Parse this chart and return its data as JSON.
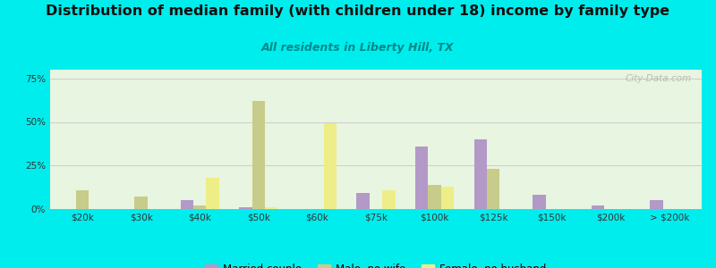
{
  "title": "Distribution of median family (with children under 18) income by family type",
  "subtitle": "All residents in Liberty Hill, TX",
  "categories": [
    "$20k",
    "$30k",
    "$40k",
    "$50k",
    "$60k",
    "$75k",
    "$100k",
    "$125k",
    "$150k",
    "$200k",
    "> $200k"
  ],
  "series": {
    "Married couple": [
      0,
      0,
      5,
      1,
      0,
      9,
      36,
      40,
      8,
      2,
      5
    ],
    "Male, no wife": [
      11,
      7,
      2,
      62,
      0,
      0,
      14,
      23,
      0,
      0,
      0
    ],
    "Female, no husband": [
      0,
      0,
      18,
      1,
      49,
      11,
      13,
      0,
      0,
      0,
      0
    ]
  },
  "colors": {
    "Married couple": "#b399c8",
    "Male, no wife": "#c8cc8a",
    "Female, no husband": "#eeee88"
  },
  "ylim": [
    0,
    80
  ],
  "yticks": [
    0,
    25,
    50,
    75
  ],
  "ytick_labels": [
    "0%",
    "25%",
    "50%",
    "75%"
  ],
  "outer_bg": "#00eded",
  "plot_bg": "#e8f5e0",
  "title_fontsize": 11.5,
  "subtitle_fontsize": 9,
  "watermark": "City-Data.com"
}
